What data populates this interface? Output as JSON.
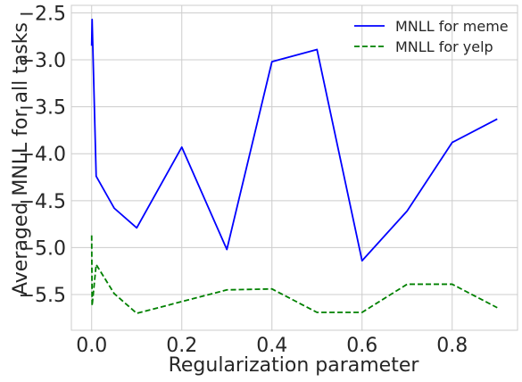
{
  "chart_data": {
    "type": "line",
    "xlabel": "Regularization parameter",
    "ylabel": "Averaged MNLL for all tasks",
    "xlim": [
      -0.045,
      0.945
    ],
    "ylim": [
      -5.88,
      -2.42
    ],
    "grid": true,
    "legend_position": "top-right",
    "x_ticks": [
      0.0,
      0.2,
      0.4,
      0.6,
      0.8
    ],
    "x_tick_labels": [
      "0.0",
      "0.2",
      "0.4",
      "0.6",
      "0.8"
    ],
    "y_ticks": [
      -2.5,
      -3.0,
      -3.5,
      -4.0,
      -4.5,
      -5.0,
      -5.5
    ],
    "y_tick_labels": [
      "−2.5",
      "−3.0",
      "−3.5",
      "−4.0",
      "−4.5",
      "−5.0",
      "−5.5"
    ],
    "series": [
      {
        "name": "MNLL for meme",
        "color": "#0000ff",
        "dash": "solid",
        "x": [
          0.0,
          0.001,
          0.01,
          0.05,
          0.1,
          0.2,
          0.3,
          0.4,
          0.5,
          0.6,
          0.7,
          0.8,
          0.9
        ],
        "y": [
          -2.85,
          -2.57,
          -4.24,
          -4.58,
          -4.79,
          -3.93,
          -5.02,
          -3.02,
          -2.89,
          -5.14,
          -4.61,
          -3.88,
          -3.63
        ]
      },
      {
        "name": "MNLL for yelp",
        "color": "#008000",
        "dash": "dashed",
        "x": [
          0.0,
          0.001,
          0.01,
          0.05,
          0.1,
          0.3,
          0.4,
          0.5,
          0.6,
          0.7,
          0.8,
          0.9
        ],
        "y": [
          -4.87,
          -5.62,
          -5.18,
          -5.49,
          -5.7,
          -5.45,
          -5.44,
          -5.69,
          -5.69,
          -5.39,
          -5.39,
          -5.64
        ]
      }
    ]
  }
}
